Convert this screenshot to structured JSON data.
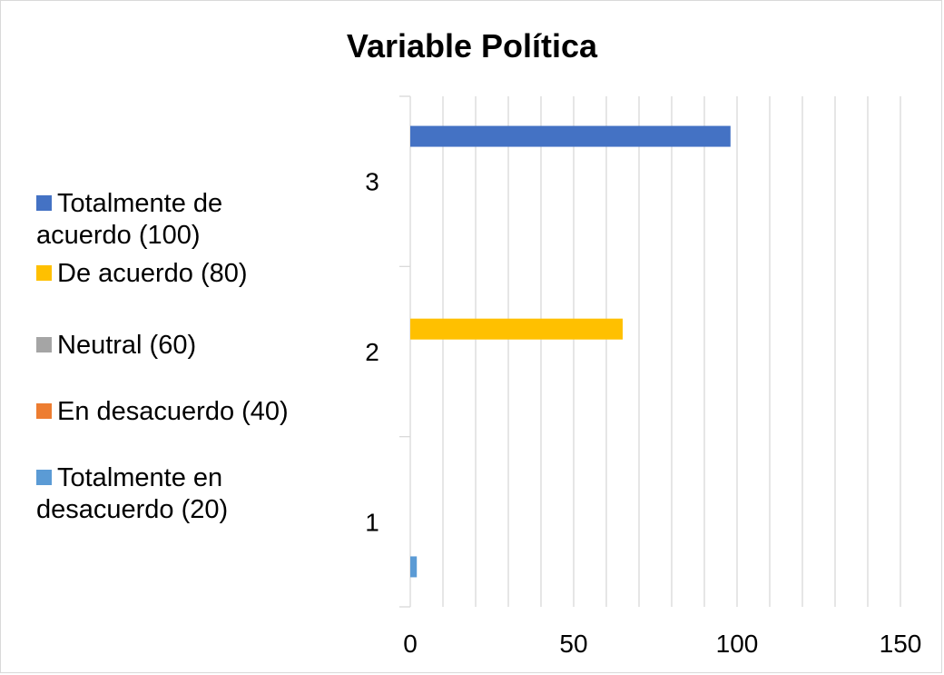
{
  "chart_data": {
    "type": "bar",
    "orientation": "horizontal",
    "title": "Variable Política",
    "categories": [
      "1",
      "2",
      "3"
    ],
    "series": [
      {
        "name": "Totalmente en desacuerdo (20)",
        "color": "#5b9bd5",
        "values": [
          2,
          0,
          0
        ]
      },
      {
        "name": "En desacuerdo (40)",
        "color": "#ed7d31",
        "values": [
          0,
          0,
          0
        ]
      },
      {
        "name": "Neutral (60)",
        "color": "#a5a5a5",
        "values": [
          0,
          0,
          0
        ]
      },
      {
        "name": "De acuerdo (80)",
        "color": "#ffc000",
        "values": [
          0,
          65,
          0
        ]
      },
      {
        "name": "Totalmente de acuerdo (100)",
        "color": "#4472c4",
        "values": [
          0,
          0,
          98
        ]
      }
    ],
    "xlim": [
      0,
      150
    ],
    "xticks": [
      "0",
      "50",
      "100",
      "150"
    ],
    "grid": true,
    "legend_position": "left"
  },
  "legend": [
    {
      "label": "Totalmente de acuerdo (100)",
      "color": "#4472c4"
    },
    {
      "label": "De acuerdo (80)",
      "color": "#ffc000"
    },
    {
      "label": "Neutral (60)",
      "color": "#a5a5a5"
    },
    {
      "label": "En desacuerdo (40)",
      "color": "#ed7d31"
    },
    {
      "label": "Totalmente en desacuerdo (20)",
      "color": "#5b9bd5"
    }
  ]
}
